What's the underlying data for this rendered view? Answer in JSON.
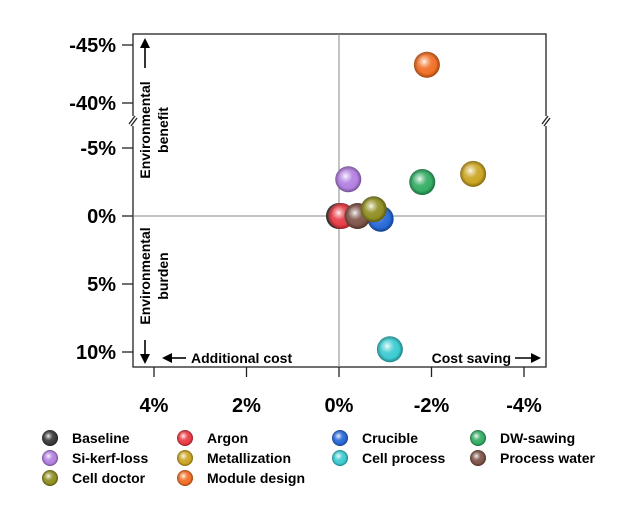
{
  "chart_data": {
    "type": "scatter",
    "xlabel": "",
    "ylabel": "",
    "x_ticks": [
      {
        "value": -4,
        "label": "4%"
      },
      {
        "value": -2,
        "label": "2%"
      },
      {
        "value": 0,
        "label": "0%"
      },
      {
        "value": 2,
        "label": "-2%"
      },
      {
        "value": 4,
        "label": "-4%"
      }
    ],
    "y_ticks_lower": [
      {
        "value": -10,
        "label": "10%"
      },
      {
        "value": -5,
        "label": "5%"
      },
      {
        "value": 0,
        "label": "0%"
      },
      {
        "value": 5,
        "label": "-5%"
      }
    ],
    "y_ticks_upper": [
      {
        "value": 40,
        "label": "-40%"
      },
      {
        "value": 45,
        "label": "-45%"
      }
    ],
    "xlim": [
      -4.5,
      4.5
    ],
    "ylim_lower": [
      -11,
      7
    ],
    "ylim_upper": [
      38.5,
      47.5
    ],
    "y_axis_break": true,
    "legend_position": "bottom",
    "annotations": {
      "benefit": "Environmental benefit",
      "benefit_l1": "Environmental",
      "benefit_l2": "benefit",
      "burden": "Environmental burden",
      "burden_l1": "Environmental",
      "burden_l2": "burden",
      "additional_cost": "Additional cost",
      "cost_saving": "Cost saving"
    },
    "series": [
      {
        "name": "Baseline",
        "x": 0.0,
        "y": 0.0,
        "color": "#333333"
      },
      {
        "name": "Argon",
        "x": 0.05,
        "y": 0.0,
        "color": "#e8343f"
      },
      {
        "name": "Crucible",
        "x": 0.9,
        "y": -0.2,
        "color": "#1f63d6"
      },
      {
        "name": "DW-sawing",
        "x": 1.8,
        "y": 2.5,
        "color": "#2daa5f"
      },
      {
        "name": "Si-kerf-loss",
        "x": 0.2,
        "y": 2.7,
        "color": "#b07be0"
      },
      {
        "name": "Metallization",
        "x": 2.9,
        "y": 3.1,
        "color": "#c9a21b"
      },
      {
        "name": "Cell process",
        "x": 1.1,
        "y": -9.8,
        "color": "#34c9cf"
      },
      {
        "name": "Process water",
        "x": 0.4,
        "y": 0.0,
        "color": "#7a4e42"
      },
      {
        "name": "Cell doctor",
        "x": 0.75,
        "y": 0.5,
        "color": "#8c8a1a"
      },
      {
        "name": "Module design",
        "x": 1.9,
        "y": 43.3,
        "color": "#f06a1d"
      }
    ]
  }
}
